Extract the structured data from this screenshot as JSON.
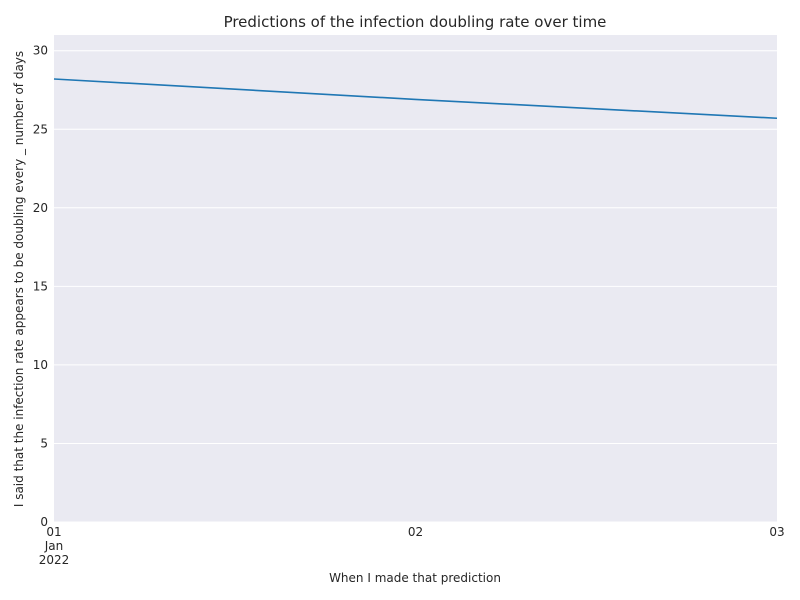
{
  "chart_data": {
    "type": "line",
    "title": "Predictions of the infection doubling rate over time",
    "xlabel": "When I made that prediction",
    "ylabel": "I said that the infection rate appears to be doubling every _ number of days",
    "x": [
      "2022-01-01",
      "2022-01-02",
      "2022-01-03"
    ],
    "series": [
      {
        "values": [
          28.2,
          26.9,
          25.7
        ]
      }
    ],
    "xlim": [
      "2022-01-01",
      "2022-01-03"
    ],
    "ylim": [
      0,
      31
    ],
    "x_ticks": [
      {
        "value": "2022-01-01",
        "lines": [
          "01",
          "Jan",
          "2022"
        ]
      },
      {
        "value": "2022-01-02",
        "lines": [
          "02"
        ]
      },
      {
        "value": "2022-01-03",
        "lines": [
          "03"
        ]
      }
    ],
    "y_ticks": [
      0,
      5,
      10,
      15,
      20,
      25,
      30
    ],
    "grid": true,
    "colors": {
      "line": "#1f77b4",
      "plot_background": "#eaeaf2",
      "grid": "#ffffff"
    }
  }
}
